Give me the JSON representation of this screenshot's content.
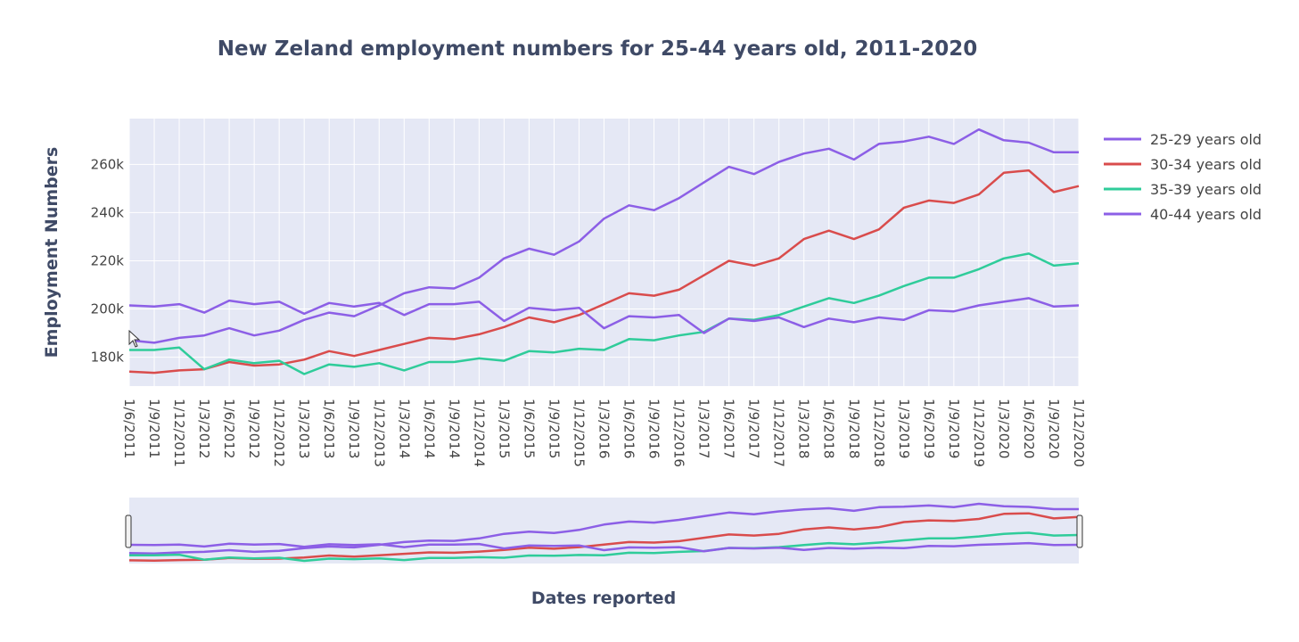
{
  "chart_data": {
    "type": "line",
    "title": "New Zeland employment numbers for 25-44 years old, 2011-2020",
    "xlabel": "Dates reported",
    "ylabel": "Employment Numbers",
    "x": [
      "1/6/2011",
      "1/9/2011",
      "1/12/2011",
      "1/3/2012",
      "1/6/2012",
      "1/9/2012",
      "1/12/2012",
      "1/3/2013",
      "1/6/2013",
      "1/9/2013",
      "1/12/2013",
      "1/3/2014",
      "1/6/2014",
      "1/9/2014",
      "1/12/2014",
      "1/3/2015",
      "1/6/2015",
      "1/9/2015",
      "1/12/2015",
      "1/3/2016",
      "1/6/2016",
      "1/9/2016",
      "1/12/2016",
      "1/3/2017",
      "1/6/2017",
      "1/9/2017",
      "1/12/2017",
      "1/3/2018",
      "1/6/2018",
      "1/9/2018",
      "1/12/2018",
      "1/3/2019",
      "1/6/2019",
      "1/9/2019",
      "1/12/2019",
      "1/3/2020",
      "1/6/2020",
      "1/9/2020",
      "1/12/2020"
    ],
    "y_ticks": [
      180000,
      200000,
      220000,
      240000,
      260000
    ],
    "y_tick_labels": [
      "180k",
      "200k",
      "220k",
      "240k",
      "260k"
    ],
    "ylim": [
      168000,
      279000
    ],
    "grid": true,
    "legend_position": "top-right",
    "has_range_slider": true,
    "series": [
      {
        "name": "25-29 years old",
        "color": "#8c5fe6",
        "values": [
          187000,
          186000,
          188000,
          189000,
          192000,
          189000,
          191000,
          195500,
          198500,
          197000,
          201500,
          206500,
          209000,
          208500,
          213000,
          221000,
          225000,
          222500,
          228000,
          237500,
          243000,
          241000,
          246000,
          252500,
          259000,
          256000,
          261000,
          264500,
          266500,
          262000,
          268500,
          269500,
          271500,
          268500,
          274500,
          270000,
          269000,
          265000,
          265000
        ]
      },
      {
        "name": "30-34 years old",
        "color": "#d94c4c",
        "values": [
          174000,
          173500,
          174500,
          175000,
          178000,
          176500,
          177000,
          179000,
          182500,
          180500,
          183000,
          185500,
          188000,
          187500,
          189500,
          192500,
          196500,
          194500,
          197500,
          202000,
          206500,
          205500,
          208000,
          214000,
          220000,
          218000,
          221000,
          229000,
          232500,
          229000,
          233000,
          242000,
          245000,
          244000,
          247500,
          256500,
          257500,
          248500,
          251000
        ]
      },
      {
        "name": "35-39 years old",
        "color": "#2fcc9a",
        "values": [
          183000,
          183000,
          184000,
          175000,
          179000,
          177500,
          178500,
          173000,
          177000,
          176000,
          177500,
          174500,
          178000,
          178000,
          179500,
          178500,
          182500,
          182000,
          183500,
          183000,
          187500,
          187000,
          189000,
          190500,
          196000,
          195500,
          197500,
          201000,
          204500,
          202500,
          205500,
          209500,
          213000,
          213000,
          216500,
          221000,
          223000,
          218000,
          219000
        ]
      },
      {
        "name": "40-44 years old",
        "color": "#8c5fe6",
        "values": [
          201500,
          201000,
          202000,
          198500,
          203500,
          202000,
          203000,
          198000,
          202500,
          201000,
          202500,
          197500,
          202000,
          202000,
          203000,
          195000,
          200500,
          199500,
          200500,
          192000,
          197000,
          196500,
          197500,
          190000,
          196000,
          195000,
          196500,
          192500,
          196000,
          194500,
          196500,
          195500,
          199500,
          199000,
          201500,
          203000,
          204500,
          201000,
          201500
        ]
      }
    ]
  }
}
